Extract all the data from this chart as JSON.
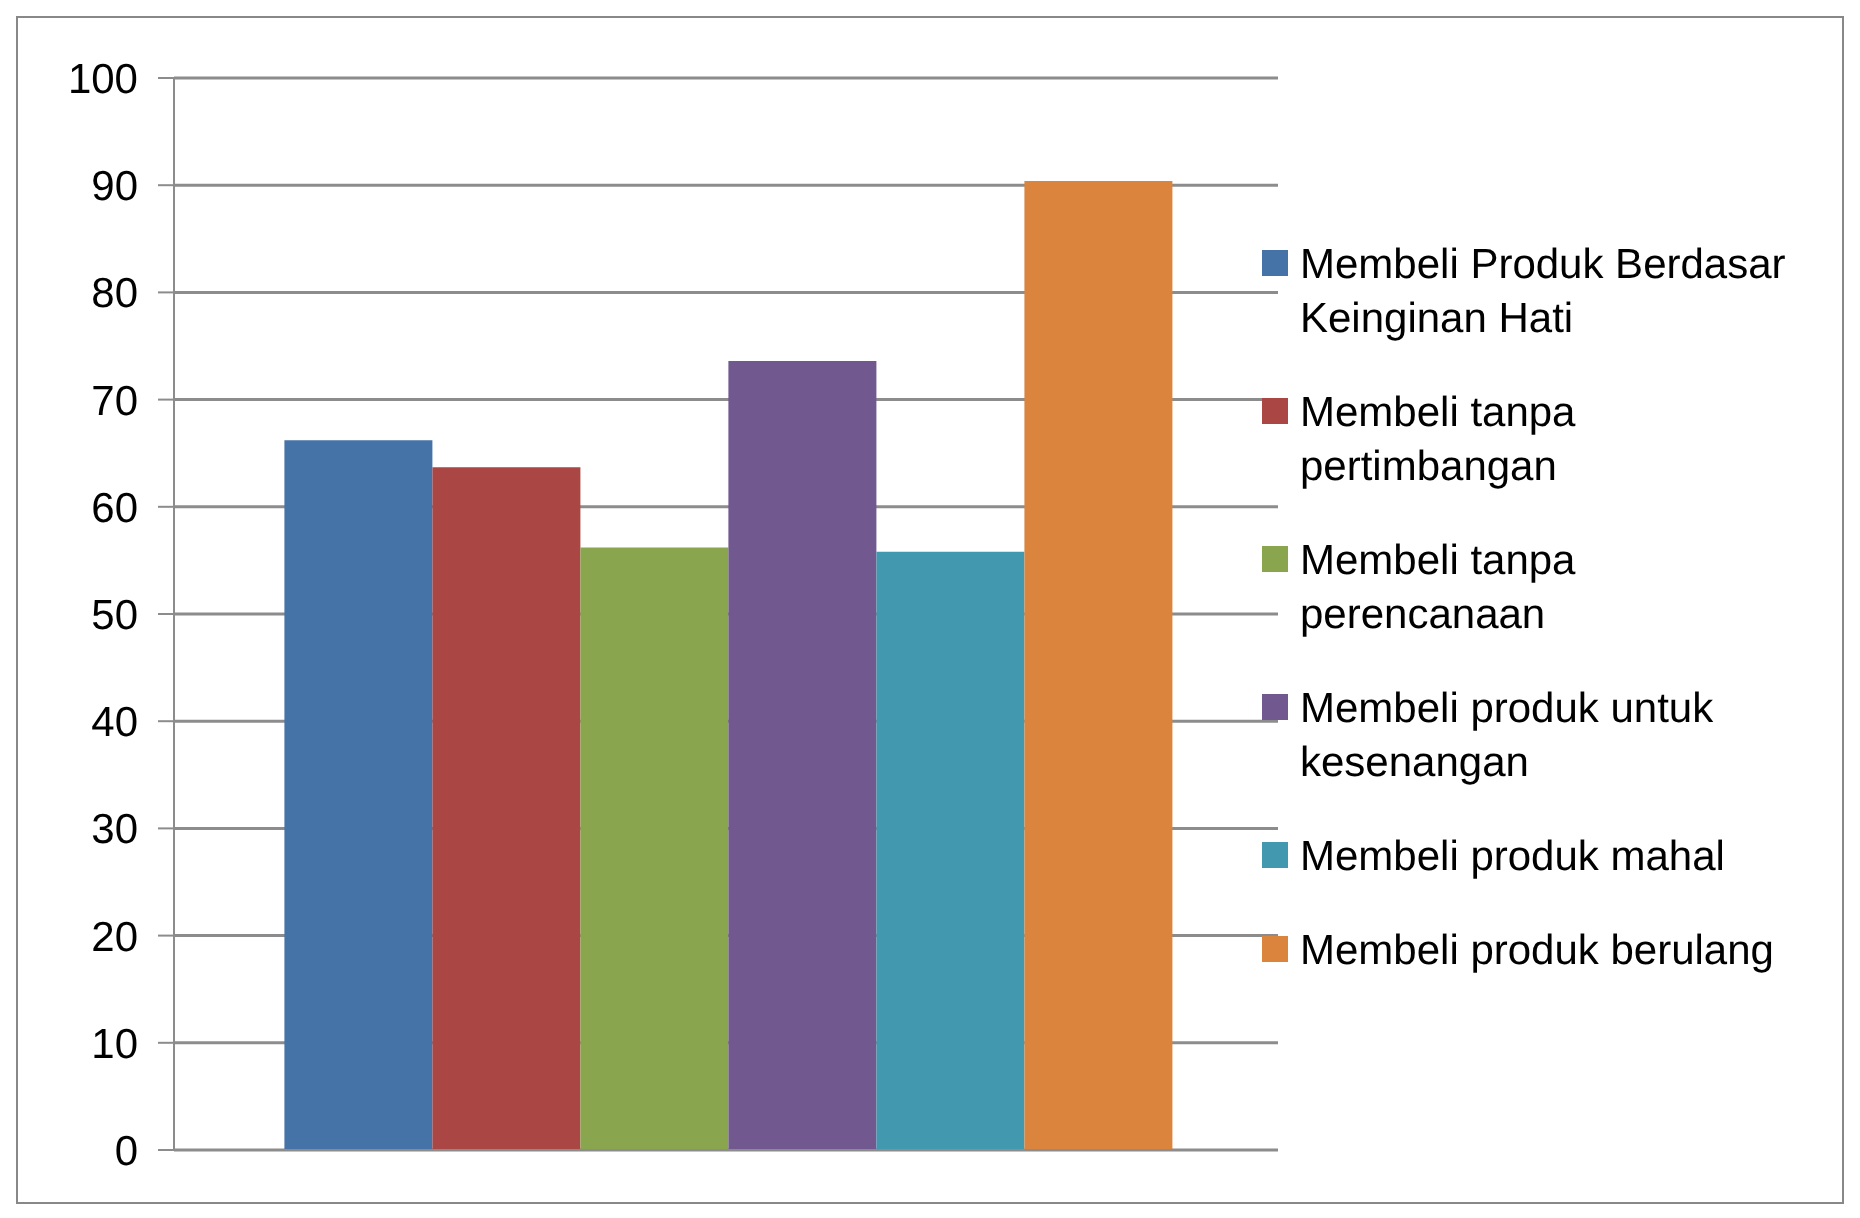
{
  "chart_data": {
    "type": "bar",
    "categories": [
      null
    ],
    "series": [
      {
        "name": "Membeli Produk Berdasar Keinginan Hati",
        "color": "#4572a7",
        "values": [
          66.2
        ]
      },
      {
        "name": "Membeli tanpa pertimbangan",
        "color": "#aa4643",
        "values": [
          63.7
        ]
      },
      {
        "name": "Membeli tanpa perencanaan",
        "color": "#89a54e",
        "values": [
          56.2
        ]
      },
      {
        "name": "Membeli produk untuk kesenangan",
        "color": "#71588f",
        "values": [
          73.6
        ]
      },
      {
        "name": "Membeli produk mahal",
        "color": "#4198af",
        "values": [
          55.8
        ]
      },
      {
        "name": "Membeli produk berulang",
        "color": "#db843d",
        "values": [
          90.4
        ]
      }
    ],
    "ylim": [
      0,
      100
    ],
    "yticks": [
      0,
      10,
      20,
      30,
      40,
      50,
      60,
      70,
      80,
      90,
      100
    ],
    "grid": "y",
    "legend": "right"
  }
}
